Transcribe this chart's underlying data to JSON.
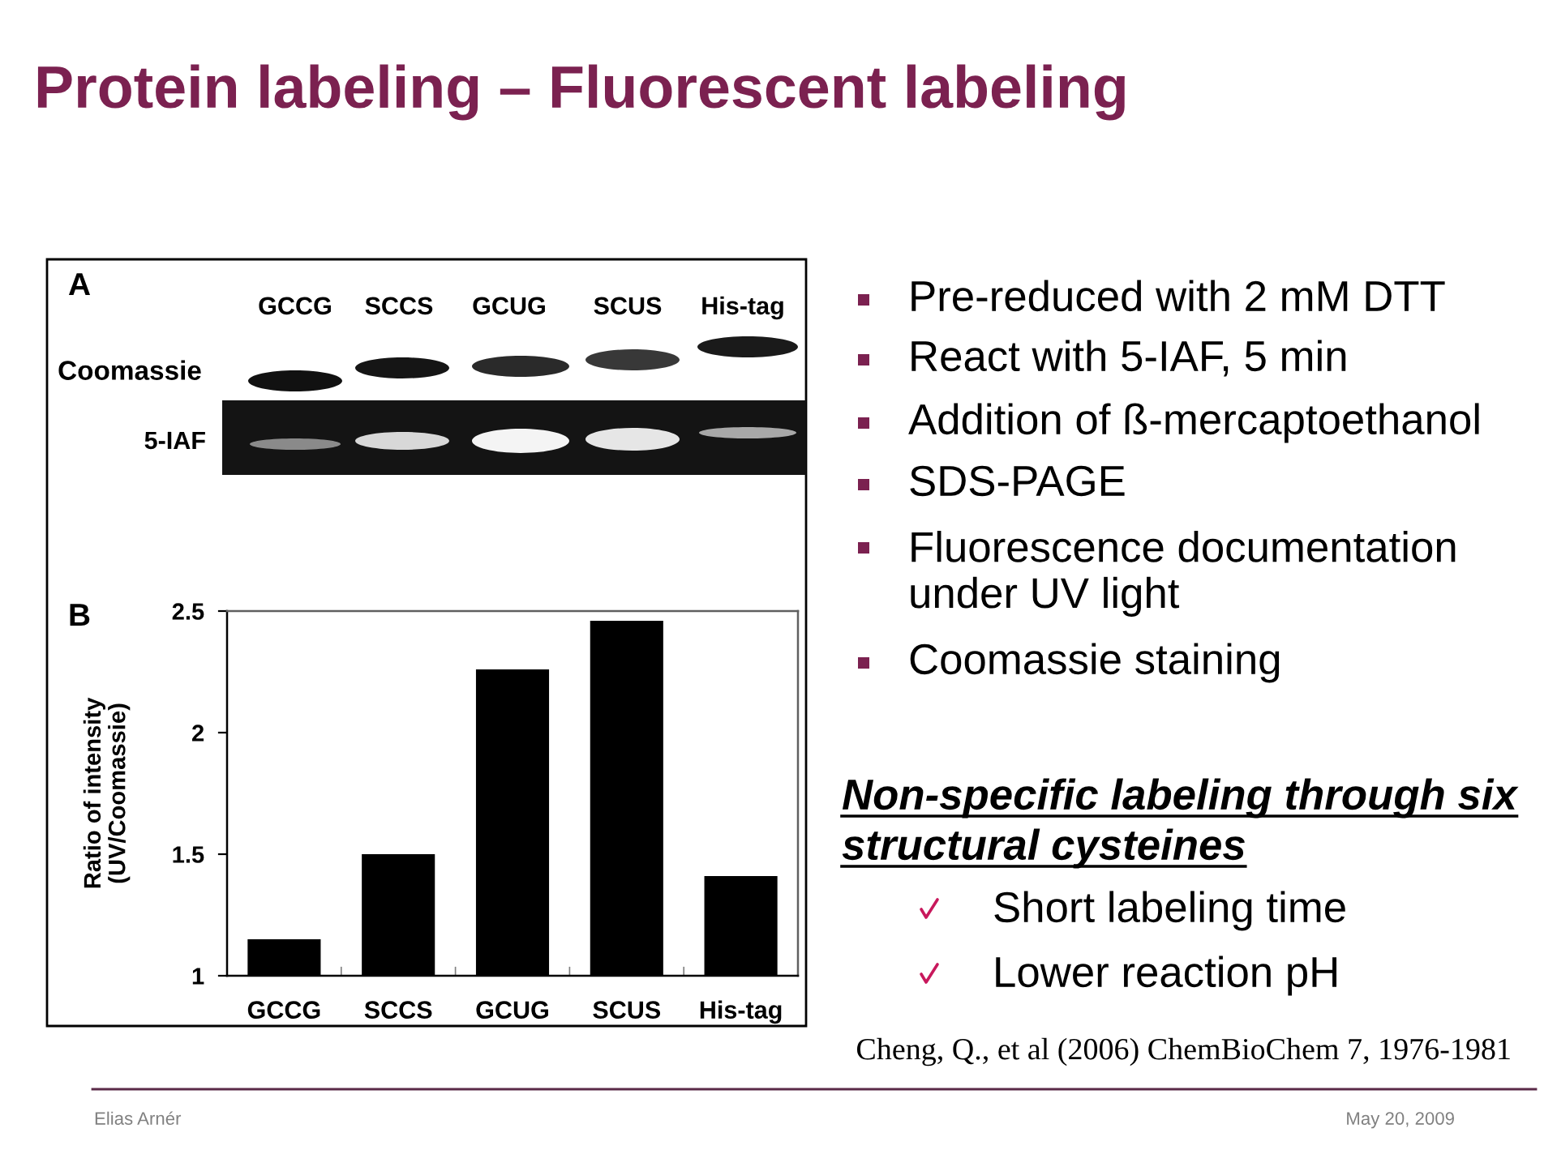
{
  "chart_data": {
    "type": "bar",
    "title": "Protein labeling – Fluorescent labeling",
    "ylabel": "Ratio of intensity\n(UV/Coomassie)",
    "categories": [
      "GCCG",
      "SCCS",
      "GCUG",
      "SCUS",
      "His-tag"
    ],
    "values": [
      1.15,
      1.5,
      2.26,
      2.46,
      1.41
    ],
    "color": "#000000",
    "ylim": [
      1,
      2.5
    ],
    "yticks": [
      1,
      1.5,
      2,
      2.5
    ],
    "annotations": [
      "A",
      "GCCG",
      "SCCS",
      "GCUG",
      "SCUS",
      "His-tag",
      "Coomassie",
      "5-IAF",
      "B",
      "Pre-reduced with 2 mM DTT",
      "React with 5-IAF, 5 min",
      "Addition of ß-mercaptoethanol",
      "SDS-PAGE",
      "Fluorescence documentation\nunder UV light",
      "Coomassie staining",
      "Non-specific labeling through six\nstructural cysteines",
      "Short labeling time",
      "Lower reaction pH",
      "Cheng, Q., et al (2006) ChemBioChem 7, 1976-1981",
      "Elias Arnér",
      "May 20, 2009"
    ]
  }
}
